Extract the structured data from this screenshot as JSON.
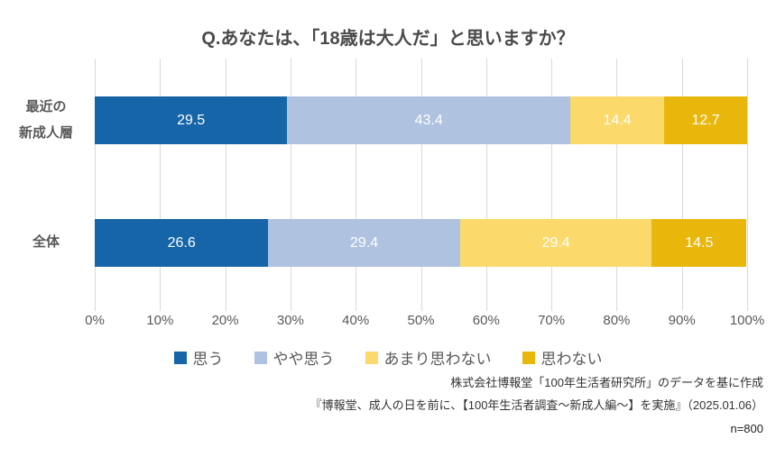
{
  "chart_data": {
    "type": "bar",
    "stacked": true,
    "orientation": "horizontal",
    "title": "Q.あなたは、「18歳は大人だ」と思いますか？",
    "categories": [
      "最近の\n新成人層",
      "全体"
    ],
    "series": [
      {
        "name": "思う",
        "color": "#1565A8",
        "values": [
          29.5,
          26.6
        ]
      },
      {
        "name": "やや思う",
        "color": "#AFC2E0",
        "values": [
          43.4,
          29.4
        ]
      },
      {
        "name": "あまり思わない",
        "color": "#FBD96A",
        "values": [
          14.4,
          29.4
        ]
      },
      {
        "name": "思わない",
        "color": "#E9B70C",
        "values": [
          12.7,
          14.5
        ]
      }
    ],
    "xlim": [
      0,
      100
    ],
    "ticks": [
      "0%",
      "10%",
      "20%",
      "30%",
      "40%",
      "50%",
      "60%",
      "70%",
      "80%",
      "90%",
      "100%"
    ],
    "grid": true,
    "legend_position": "bottom",
    "value_label_color": "#ffffff",
    "gridline_color": "#d9d9d9"
  },
  "footer": {
    "source_line1": "株式会社博報堂「100年生活者研究所」のデータを基に作成",
    "source_line2": "『博報堂、成人の日を前に、【100年生活者調査～新成人編～】を実施』（2025.01.06）",
    "sample_size": "n=800"
  }
}
